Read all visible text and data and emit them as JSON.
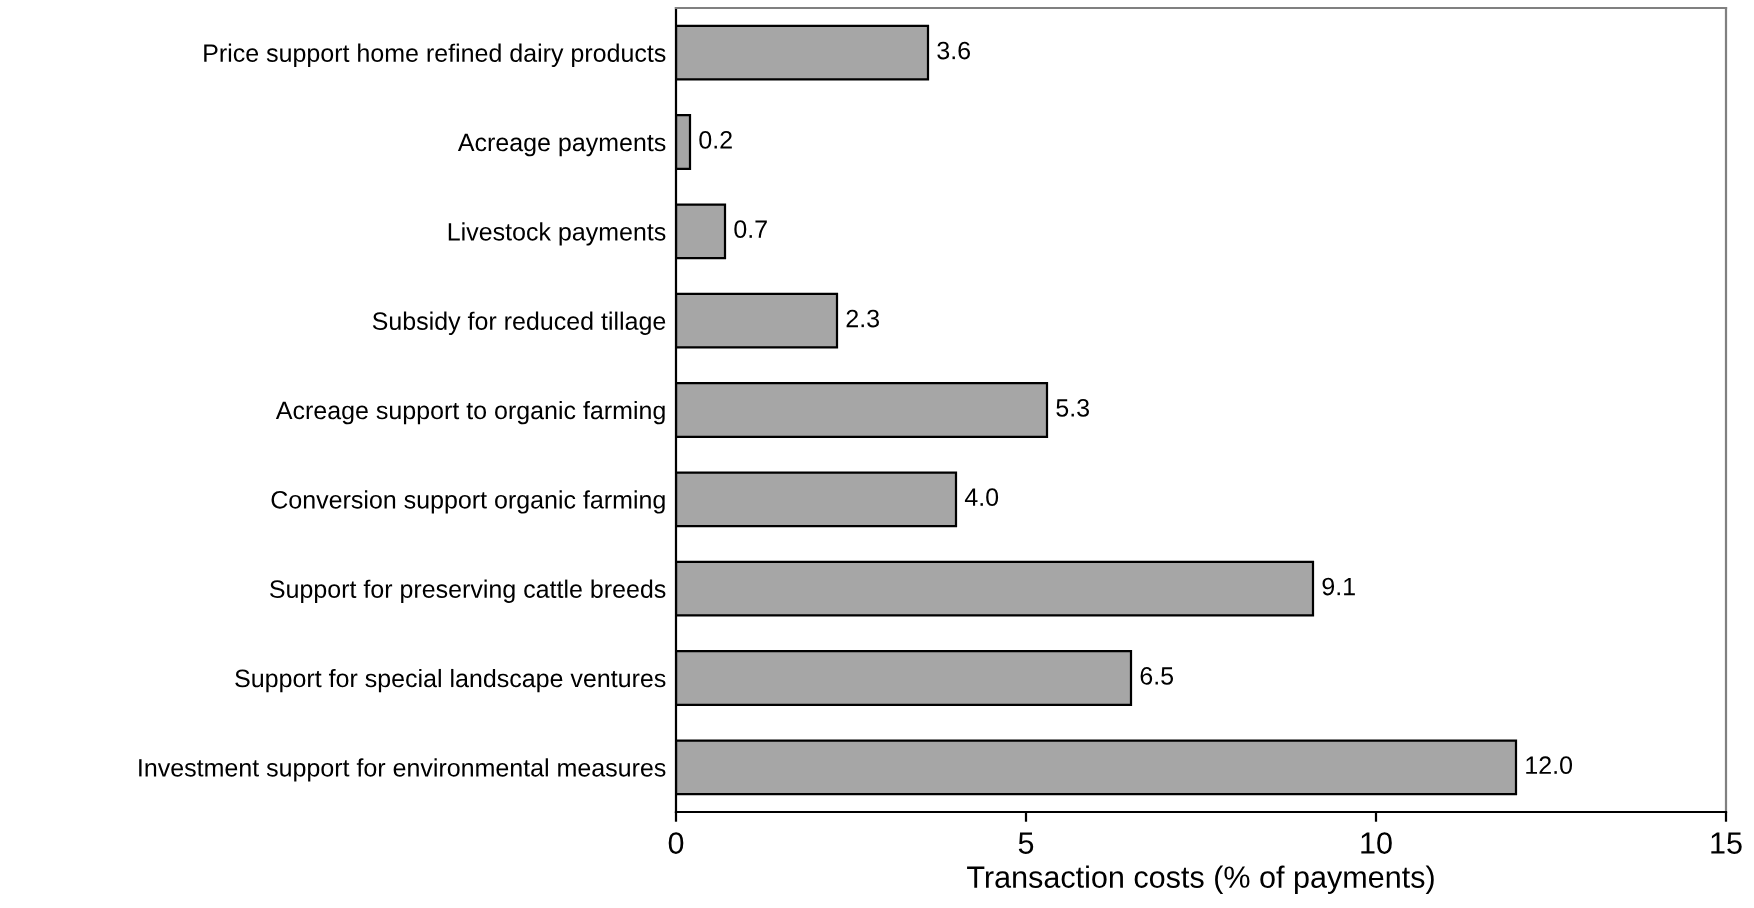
{
  "chart_data": {
    "type": "bar",
    "orientation": "horizontal",
    "xlabel": "Transaction costs (% of payments)",
    "categories": [
      "Price support home refined dairy products",
      "Acreage payments",
      "Livestock payments",
      "Subsidy for reduced tillage",
      "Acreage support to organic farming",
      "Conversion support organic farming",
      "Support for preserving cattle breeds",
      "Support for special landscape ventures",
      "Investment support for environmental measures"
    ],
    "values": [
      3.6,
      0.2,
      0.7,
      2.3,
      5.3,
      4.0,
      9.1,
      6.5,
      12.0
    ],
    "value_labels": [
      "3.6",
      "0.2",
      "0.7",
      "2.3",
      "5.3",
      "4.0",
      "9.1",
      "6.5",
      "12.0"
    ],
    "color": "#a6a6a6",
    "xlim": [
      0,
      15
    ],
    "xticks": [
      0,
      5,
      10,
      15
    ],
    "grid": false
  }
}
